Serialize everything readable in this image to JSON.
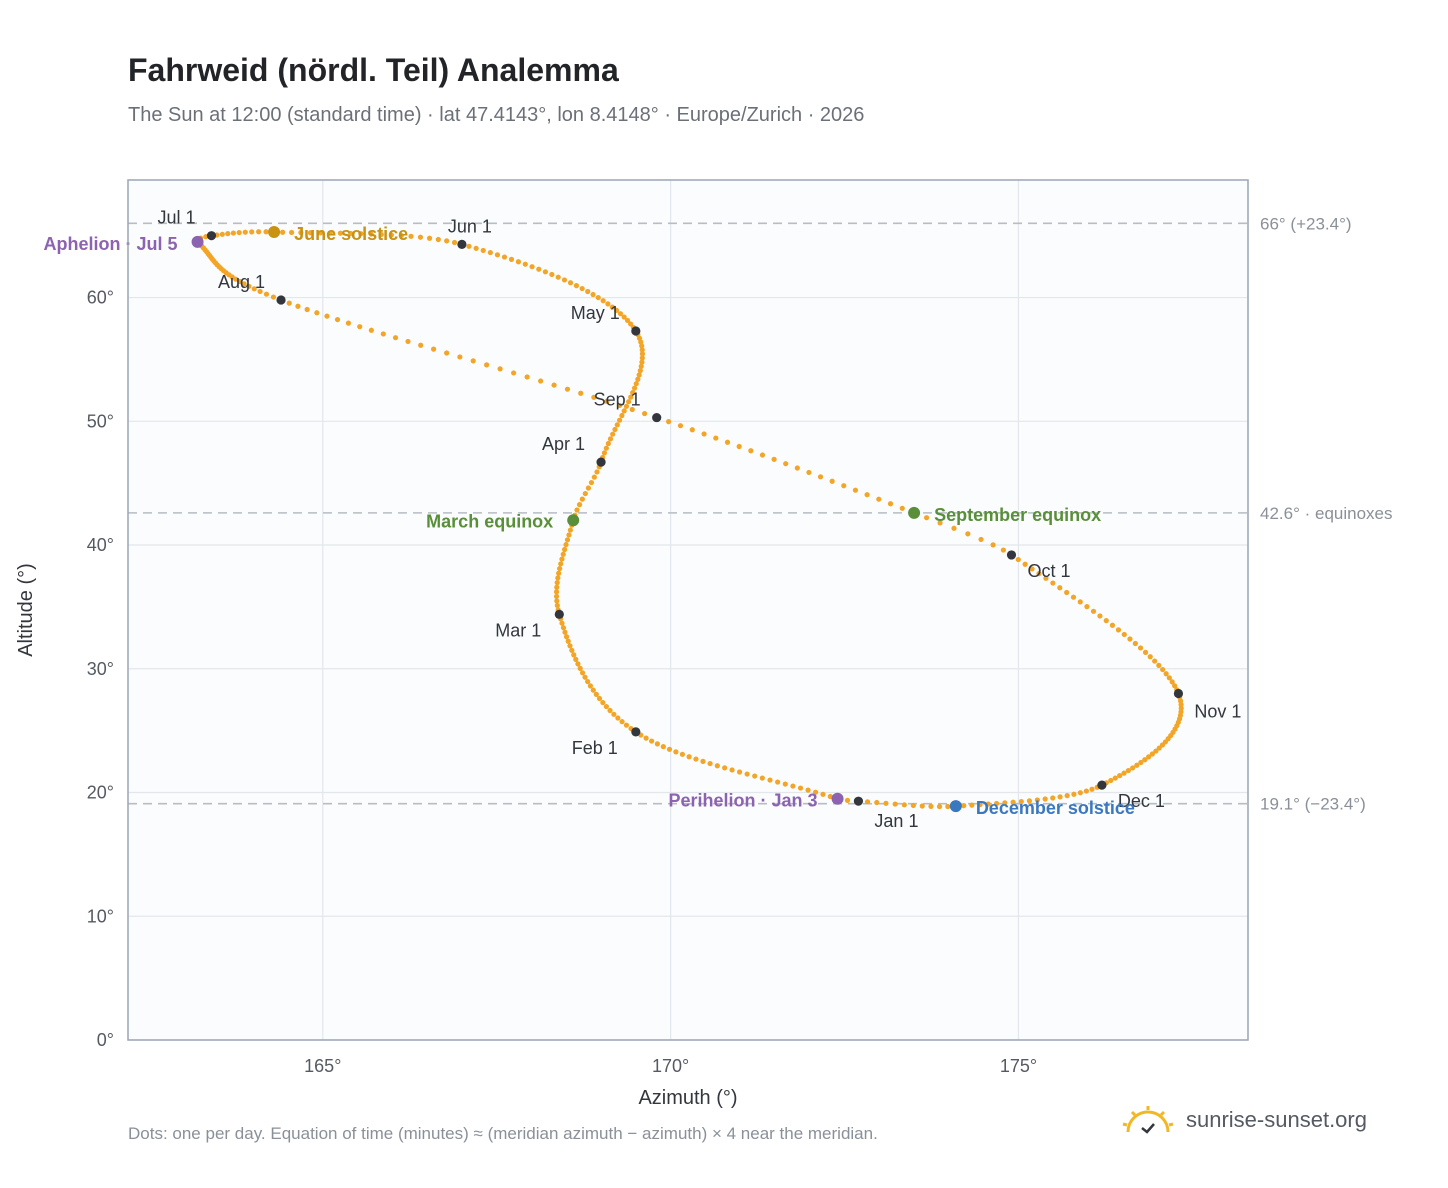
{
  "title": "Fahrweid (nördl. Teil) Analemma",
  "subtitle": "The Sun at 12:00 (standard time) · lat 47.4143°, lon 8.4148° · Europe/Zurich · 2026",
  "footnote": "Dots: one per day. Equation of time (minutes) ≈ (meridian azimuth − azimuth) × 4 near the meridian.",
  "brand": {
    "name": "sunrise-sunset.org",
    "logo_icon": "sun-rising-icon"
  },
  "colors": {
    "curve": "#f2a526",
    "marker": "#33373d",
    "equinox": "#5a8f3a",
    "june_solstice": "#c89212",
    "december_solstice": "#3a78c0",
    "apsis": "#8c63b0",
    "reference_line": "#b8bdc4",
    "grid": "#e3e7ec",
    "plot_bg": "#fafcfd",
    "frame": "#9aa5b3"
  },
  "chart_data": {
    "type": "scatter",
    "title": "Fahrweid (nördl. Teil) Analemma",
    "xlabel": "Azimuth (°)",
    "ylabel": "Altitude (°)",
    "xlim": [
      162.2,
      178.3
    ],
    "ylim": [
      0,
      69.5
    ],
    "x_ticks": [
      165,
      170,
      175
    ],
    "x_tick_labels": [
      "165°",
      "170°",
      "175°"
    ],
    "y_ticks": [
      0,
      10,
      20,
      30,
      40,
      50,
      60
    ],
    "y_tick_labels": [
      "0°",
      "10°",
      "20°",
      "30°",
      "40°",
      "50°",
      "60°"
    ],
    "grid": true,
    "reference_lines": [
      {
        "y": 66.0,
        "label": "66° (+23.4°)"
      },
      {
        "y": 42.6,
        "label": "42.6° · equinoxes"
      },
      {
        "y": 19.1,
        "label": "19.1° (−23.4°)"
      }
    ],
    "month_markers": [
      {
        "label": "Jan 1",
        "x": 172.7,
        "y": 19.3
      },
      {
        "label": "Feb 1",
        "x": 169.5,
        "y": 24.9
      },
      {
        "label": "Mar 1",
        "x": 168.4,
        "y": 34.4
      },
      {
        "label": "Apr 1",
        "x": 169.0,
        "y": 46.7
      },
      {
        "label": "May 1",
        "x": 169.5,
        "y": 57.3
      },
      {
        "label": "Jun 1",
        "x": 167.0,
        "y": 64.3
      },
      {
        "label": "Jul 1",
        "x": 163.4,
        "y": 65.0
      },
      {
        "label": "Aug 1",
        "x": 164.4,
        "y": 59.8
      },
      {
        "label": "Sep 1",
        "x": 169.8,
        "y": 50.3
      },
      {
        "label": "Oct 1",
        "x": 174.9,
        "y": 39.2
      },
      {
        "label": "Nov 1",
        "x": 177.3,
        "y": 28.0
      },
      {
        "label": "Dec 1",
        "x": 176.2,
        "y": 20.6
      }
    ],
    "events": [
      {
        "label": "March equinox",
        "x": 168.6,
        "y": 42.0,
        "color_key": "equinox"
      },
      {
        "label": "June solstice",
        "x": 164.3,
        "y": 65.3,
        "color_key": "june_solstice"
      },
      {
        "label": "September equinox",
        "x": 173.5,
        "y": 42.6,
        "color_key": "equinox"
      },
      {
        "label": "December solstice",
        "x": 174.1,
        "y": 18.9,
        "color_key": "december_solstice"
      },
      {
        "label": "Aphelion · Jul 5",
        "x": 163.2,
        "y": 64.5,
        "color_key": "apsis"
      },
      {
        "label": "Perihelion · Jan 3",
        "x": 172.4,
        "y": 19.5,
        "color_key": "apsis"
      }
    ]
  }
}
